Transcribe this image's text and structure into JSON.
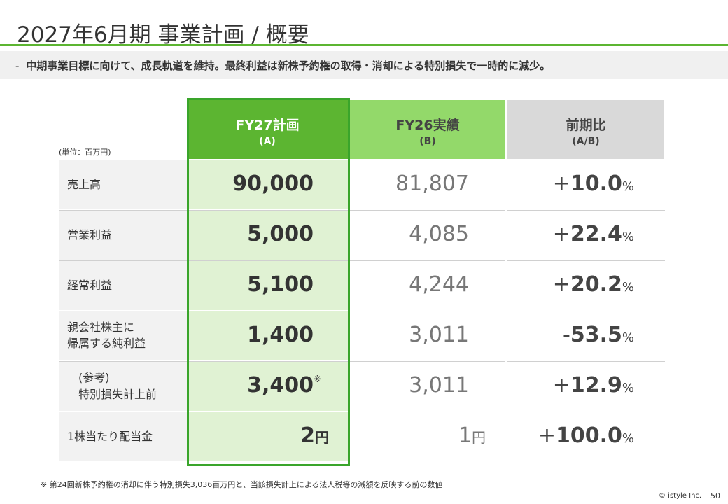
{
  "header": {
    "title": "2027年6月期 事業計画 / 概要",
    "subtitle_dash": "-",
    "subtitle": "中期事業目標に向けて、成長軌道を維持。最終利益は新株予約権の取得・消却による特別損失で一時的に減少。"
  },
  "table": {
    "unit": "(単位：百万円)",
    "columns": {
      "a": {
        "line1": "FY27計画",
        "line2": "(A)"
      },
      "b": {
        "line1": "FY26実績",
        "line2": "(B)"
      },
      "c": {
        "line1": "前期比",
        "line2": "(A/B)"
      }
    },
    "rows": [
      {
        "label1": "売上高",
        "label2": "",
        "a": "90,000",
        "a_suffix": "",
        "b": "81,807",
        "b_suffix": "",
        "c_sign": "+",
        "c": "10.0",
        "c_pct": "%"
      },
      {
        "label1": "営業利益",
        "label2": "",
        "a": "5,000",
        "a_suffix": "",
        "b": "4,085",
        "b_suffix": "",
        "c_sign": "+",
        "c": "22.4",
        "c_pct": "%"
      },
      {
        "label1": "経常利益",
        "label2": "",
        "a": "5,100",
        "a_suffix": "",
        "b": "4,244",
        "b_suffix": "",
        "c_sign": "+",
        "c": "20.2",
        "c_pct": "%"
      },
      {
        "label1": "親会社株主に",
        "label2": "帰属する純利益",
        "a": "1,400",
        "a_suffix": "",
        "b": "3,011",
        "b_suffix": "",
        "c_sign": "-",
        "c": "53.5",
        "c_pct": "%"
      },
      {
        "label1": "(参考)",
        "label2": "特別損失計上前",
        "a": "3,400",
        "a_suffix": "",
        "a_mark": "※",
        "b": "3,011",
        "b_suffix": "",
        "c_sign": "+",
        "c": "12.9",
        "c_pct": "%"
      },
      {
        "label1": "1株当たり配当金",
        "label2": "",
        "a": "2",
        "a_suffix": "円",
        "b": "1",
        "b_suffix": "円",
        "c_sign": "+",
        "c": "100.0",
        "c_pct": "%"
      }
    ]
  },
  "footer": {
    "footnote": "※ 第24回新株予約権の消却に伴う特別損失3,036百万円と、当該損失計上による法人税等の減額を反映する前の数値",
    "copyright": "© istyle Inc.",
    "page_number": "50"
  },
  "colors": {
    "accent_green": "#5cb531",
    "light_green": "#93d96a",
    "plan_cell": "#e0f2d3",
    "highlight_border": "#3aa52b",
    "gray_header": "#d9d9d9"
  }
}
